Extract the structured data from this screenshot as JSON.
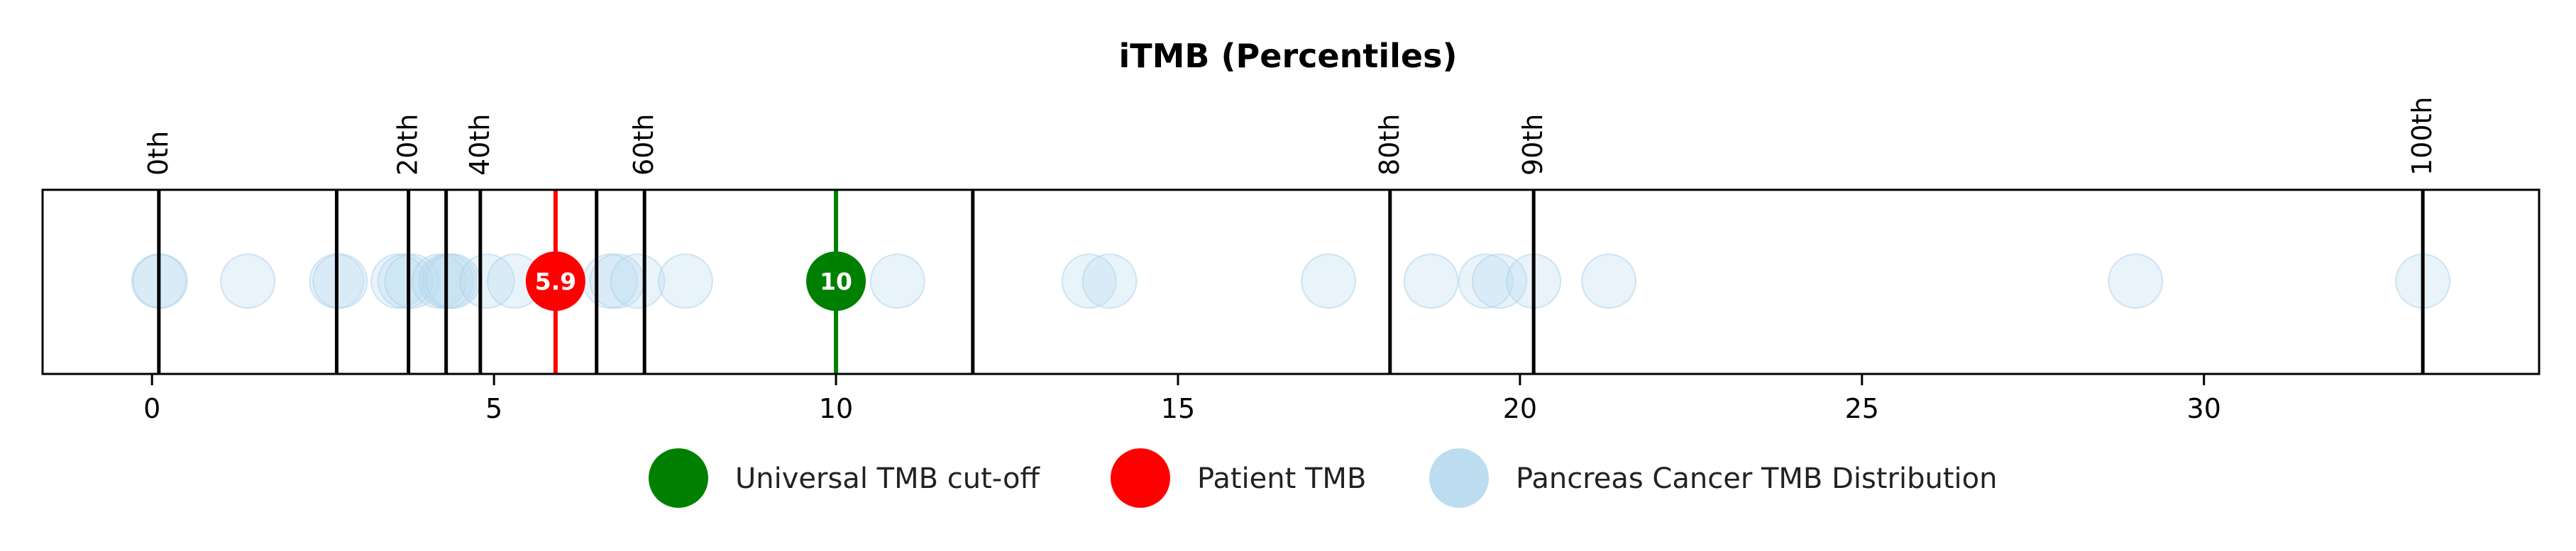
{
  "chart_data": {
    "type": "scatter",
    "title": "iTMB (Percentiles)",
    "xlabel": "",
    "ylabel": "",
    "xlim": [
      -1.6,
      34.9
    ],
    "x_ticks": [
      0,
      5,
      10,
      15,
      20,
      25,
      30
    ],
    "grid": false,
    "percentile_lines": [
      {
        "x": 0.1,
        "label": "0th"
      },
      {
        "x": 2.7,
        "label": ""
      },
      {
        "x": 3.75,
        "label": "20th"
      },
      {
        "x": 4.3,
        "label": ""
      },
      {
        "x": 4.8,
        "label": "40th"
      },
      {
        "x": 6.5,
        "label": ""
      },
      {
        "x": 7.2,
        "label": "60th"
      },
      {
        "x": 12.0,
        "label": ""
      },
      {
        "x": 18.1,
        "label": "80th"
      },
      {
        "x": 20.2,
        "label": "90th"
      },
      {
        "x": 33.2,
        "label": "100th"
      }
    ],
    "distribution": {
      "name": "Pancreas Cancer TMB Distribution",
      "color": "#bcdcf0",
      "values": [
        0.1,
        0.12,
        1.4,
        2.7,
        2.75,
        3.6,
        3.7,
        3.8,
        4.2,
        4.3,
        4.35,
        4.4,
        4.9,
        5.3,
        6.7,
        6.8,
        7.1,
        7.8,
        10.9,
        13.7,
        14.0,
        17.2,
        18.7,
        19.5,
        19.7,
        20.2,
        21.3,
        29.0,
        33.2
      ]
    },
    "universal_cutoff": {
      "name": "Universal TMB cut-off",
      "value": 10,
      "label": "10",
      "color": "#008000"
    },
    "patient": {
      "name": "Patient TMB",
      "value": 5.9,
      "label": "5.9",
      "color": "#ff0000"
    },
    "legend_position": "bottom-center",
    "legend": [
      {
        "label": "Universal TMB cut-off",
        "color": "#008000"
      },
      {
        "label": "Patient TMB",
        "color": "#ff0000"
      },
      {
        "label": "Pancreas Cancer TMB Distribution",
        "color": "#bcdcf0"
      }
    ]
  }
}
